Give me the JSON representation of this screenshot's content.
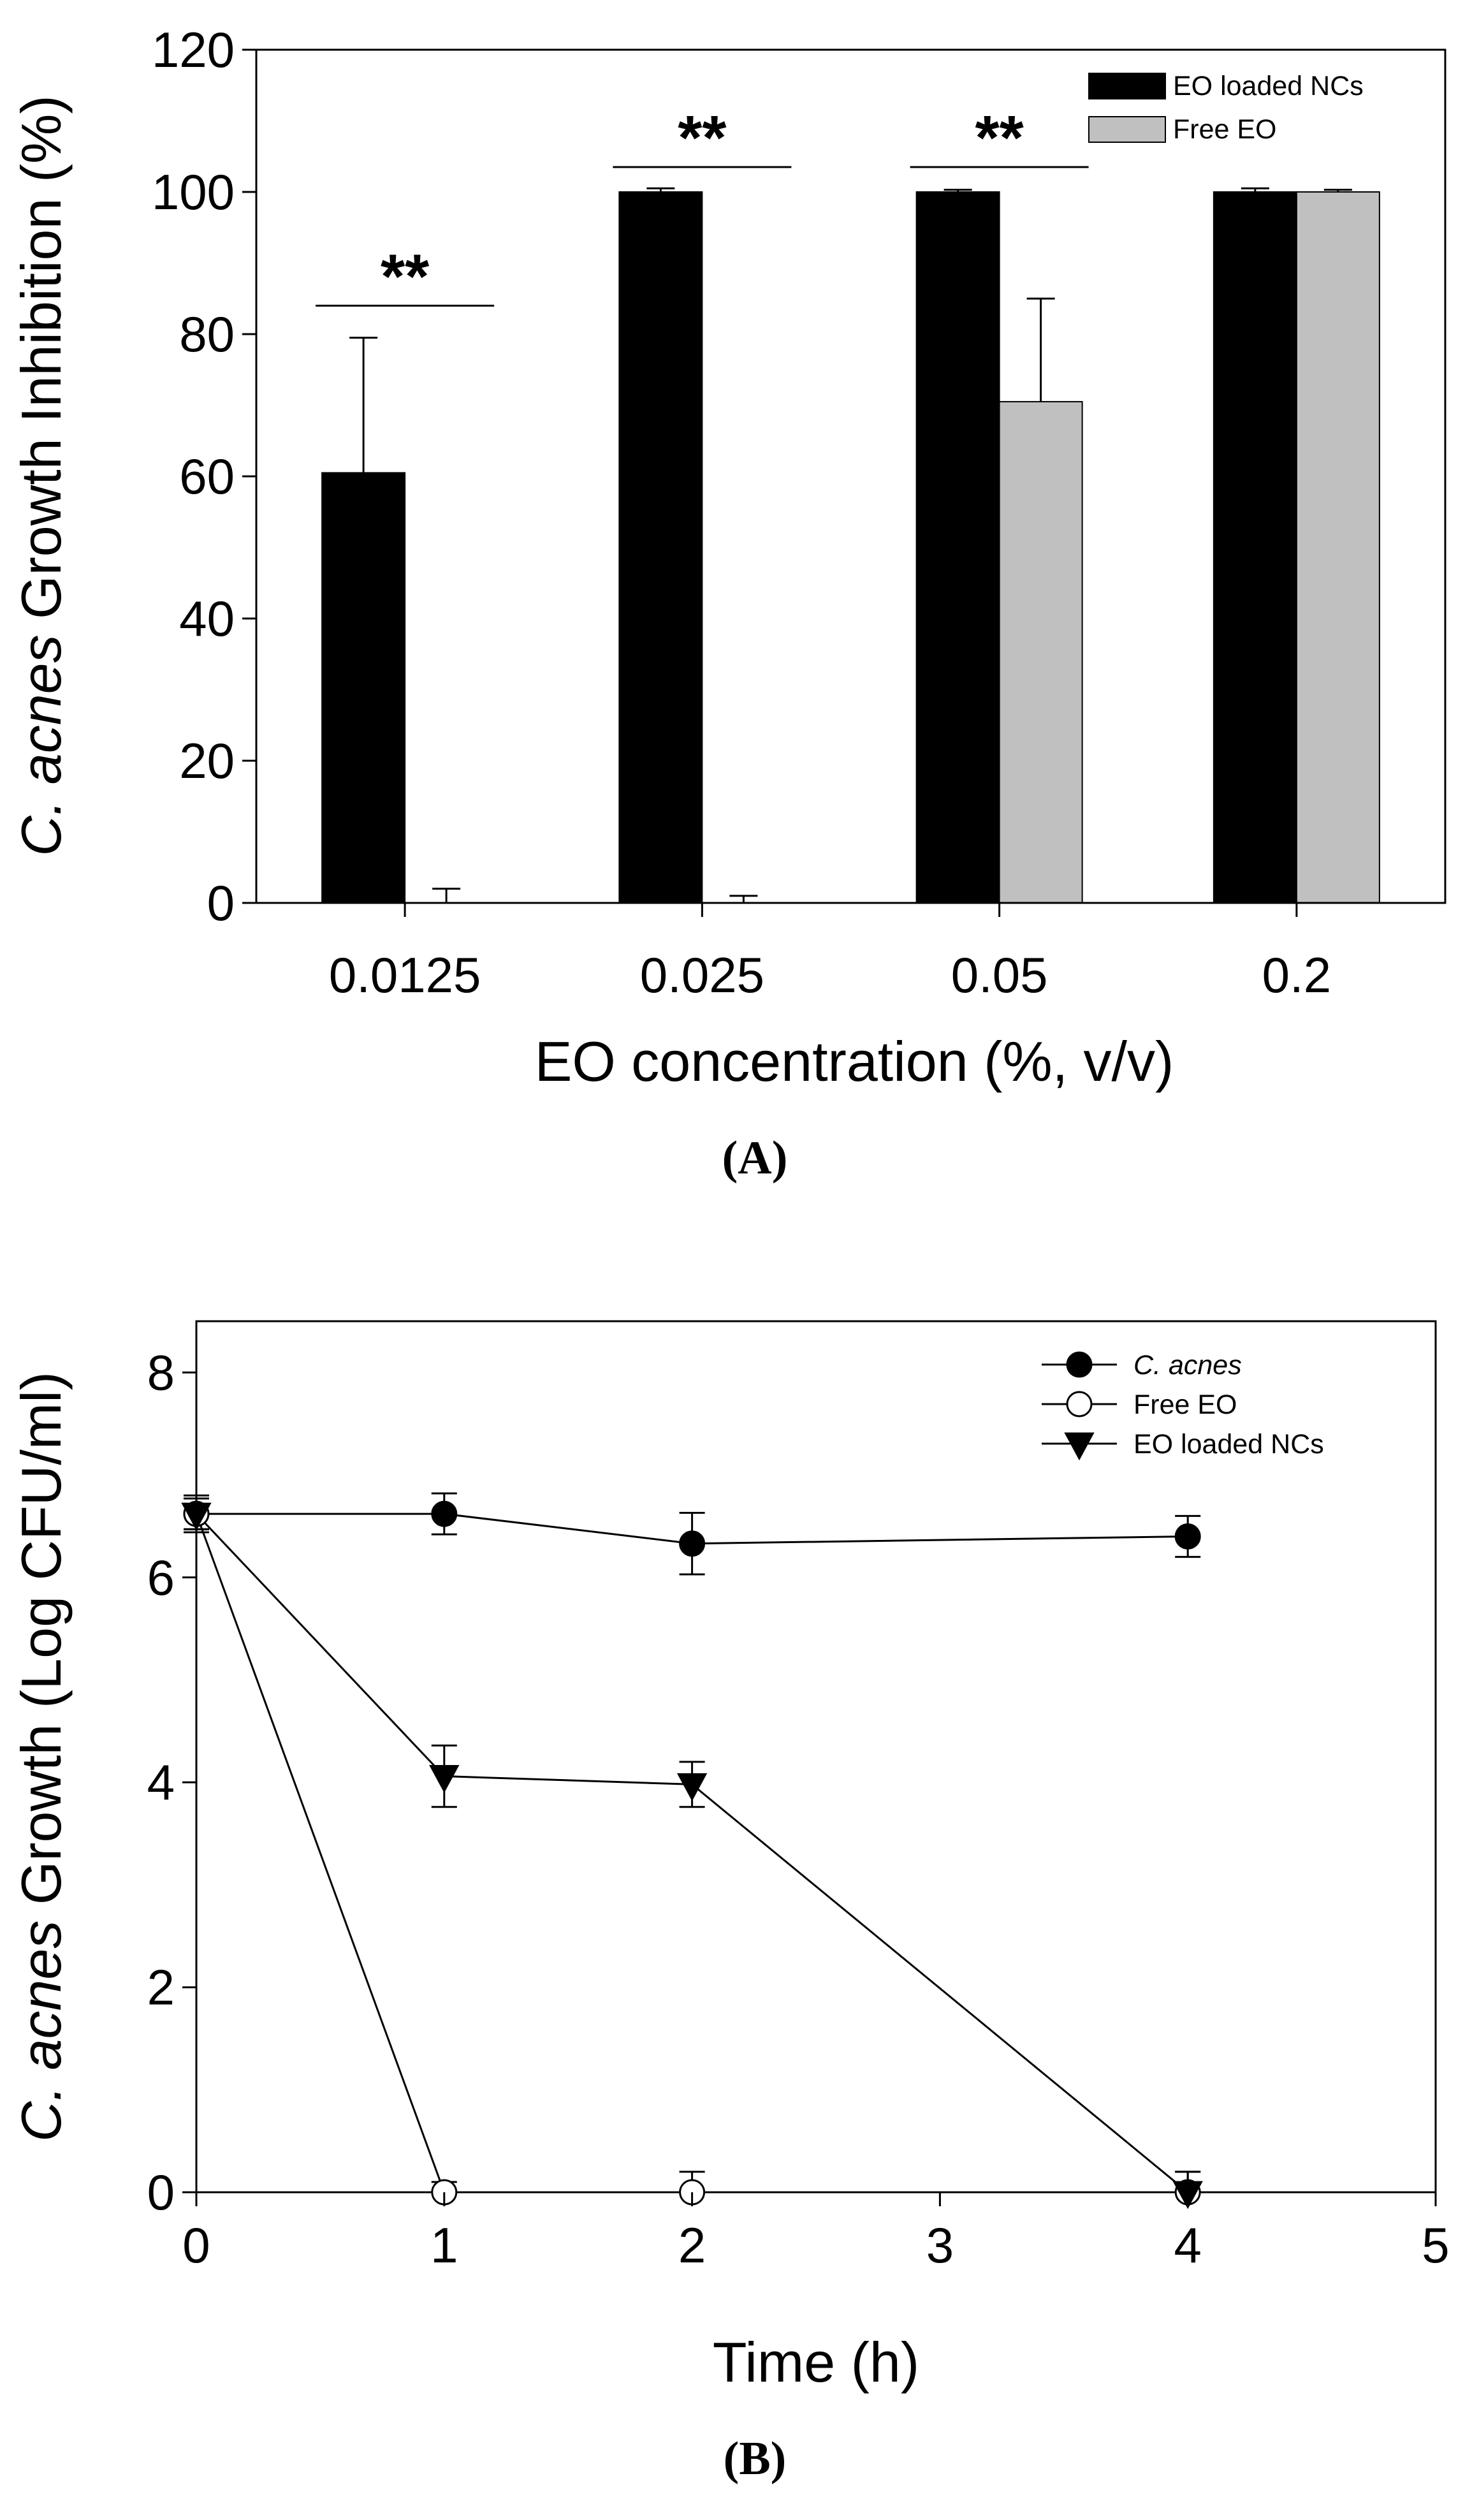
{
  "chart_data": [
    {
      "type": "bar",
      "panel_label": "A",
      "categories": [
        "0.0125",
        "0.025",
        "0.05",
        "0.2"
      ],
      "series": [
        {
          "name": "EO loaded NCs",
          "color": "#000000",
          "values": [
            60.5,
            100,
            100,
            100
          ],
          "errors": [
            19,
            0.5,
            0.3,
            0.5
          ]
        },
        {
          "name": "Free EO",
          "color": "#c0c0c0",
          "values": [
            0,
            0,
            70.5,
            100
          ],
          "errors": [
            2,
            1,
            14.5,
            0.3
          ]
        }
      ],
      "xlabel": "EO concentration (%, v/v)",
      "ylabel_italic": "C. acnes",
      "ylabel_rest": " Growth Inhibition (%)",
      "ylim": [
        0,
        120
      ],
      "yticks": [
        0,
        20,
        40,
        60,
        80,
        100,
        120
      ],
      "legend_position": "top-right",
      "grid": false,
      "significance": [
        {
          "category": "0.0125",
          "label": "**",
          "y": 84
        },
        {
          "category": "0.025",
          "label": "**",
          "y": 103.5
        },
        {
          "category": "0.05",
          "label": "**",
          "y": 103.5
        }
      ]
    },
    {
      "type": "line",
      "panel_label": "B",
      "series": [
        {
          "name": "C. acnes",
          "name_italic": true,
          "marker": "circle-filled",
          "x": [
            0,
            1,
            2,
            4
          ],
          "y": [
            6.62,
            6.62,
            6.33,
            6.4
          ],
          "errors": [
            0.18,
            0.2,
            0.3,
            0.2
          ]
        },
        {
          "name": "Free EO",
          "name_italic": false,
          "marker": "circle-open",
          "x": [
            0,
            1,
            2,
            4
          ],
          "y": [
            6.62,
            0,
            0,
            0
          ],
          "errors": [
            0.15,
            0.1,
            0.2,
            0.2
          ]
        },
        {
          "name": "EO loaded NCs",
          "name_italic": false,
          "marker": "triangle-down-filled",
          "x": [
            0,
            1,
            2,
            4
          ],
          "y": [
            6.62,
            4.06,
            3.98,
            0
          ],
          "errors": [
            0.15,
            0.3,
            0.22,
            0.2
          ]
        }
      ],
      "xlabel": "Time (h)",
      "ylabel_italic": "C. acnes",
      "ylabel_rest": " Growth (Log CFU/ml)",
      "xlim": [
        0,
        5
      ],
      "ylim": [
        0,
        8.5
      ],
      "xticks": [
        0,
        1,
        2,
        3,
        4,
        5
      ],
      "yticks": [
        0,
        2,
        4,
        6,
        8
      ],
      "legend_position": "top-right",
      "grid": false
    }
  ]
}
